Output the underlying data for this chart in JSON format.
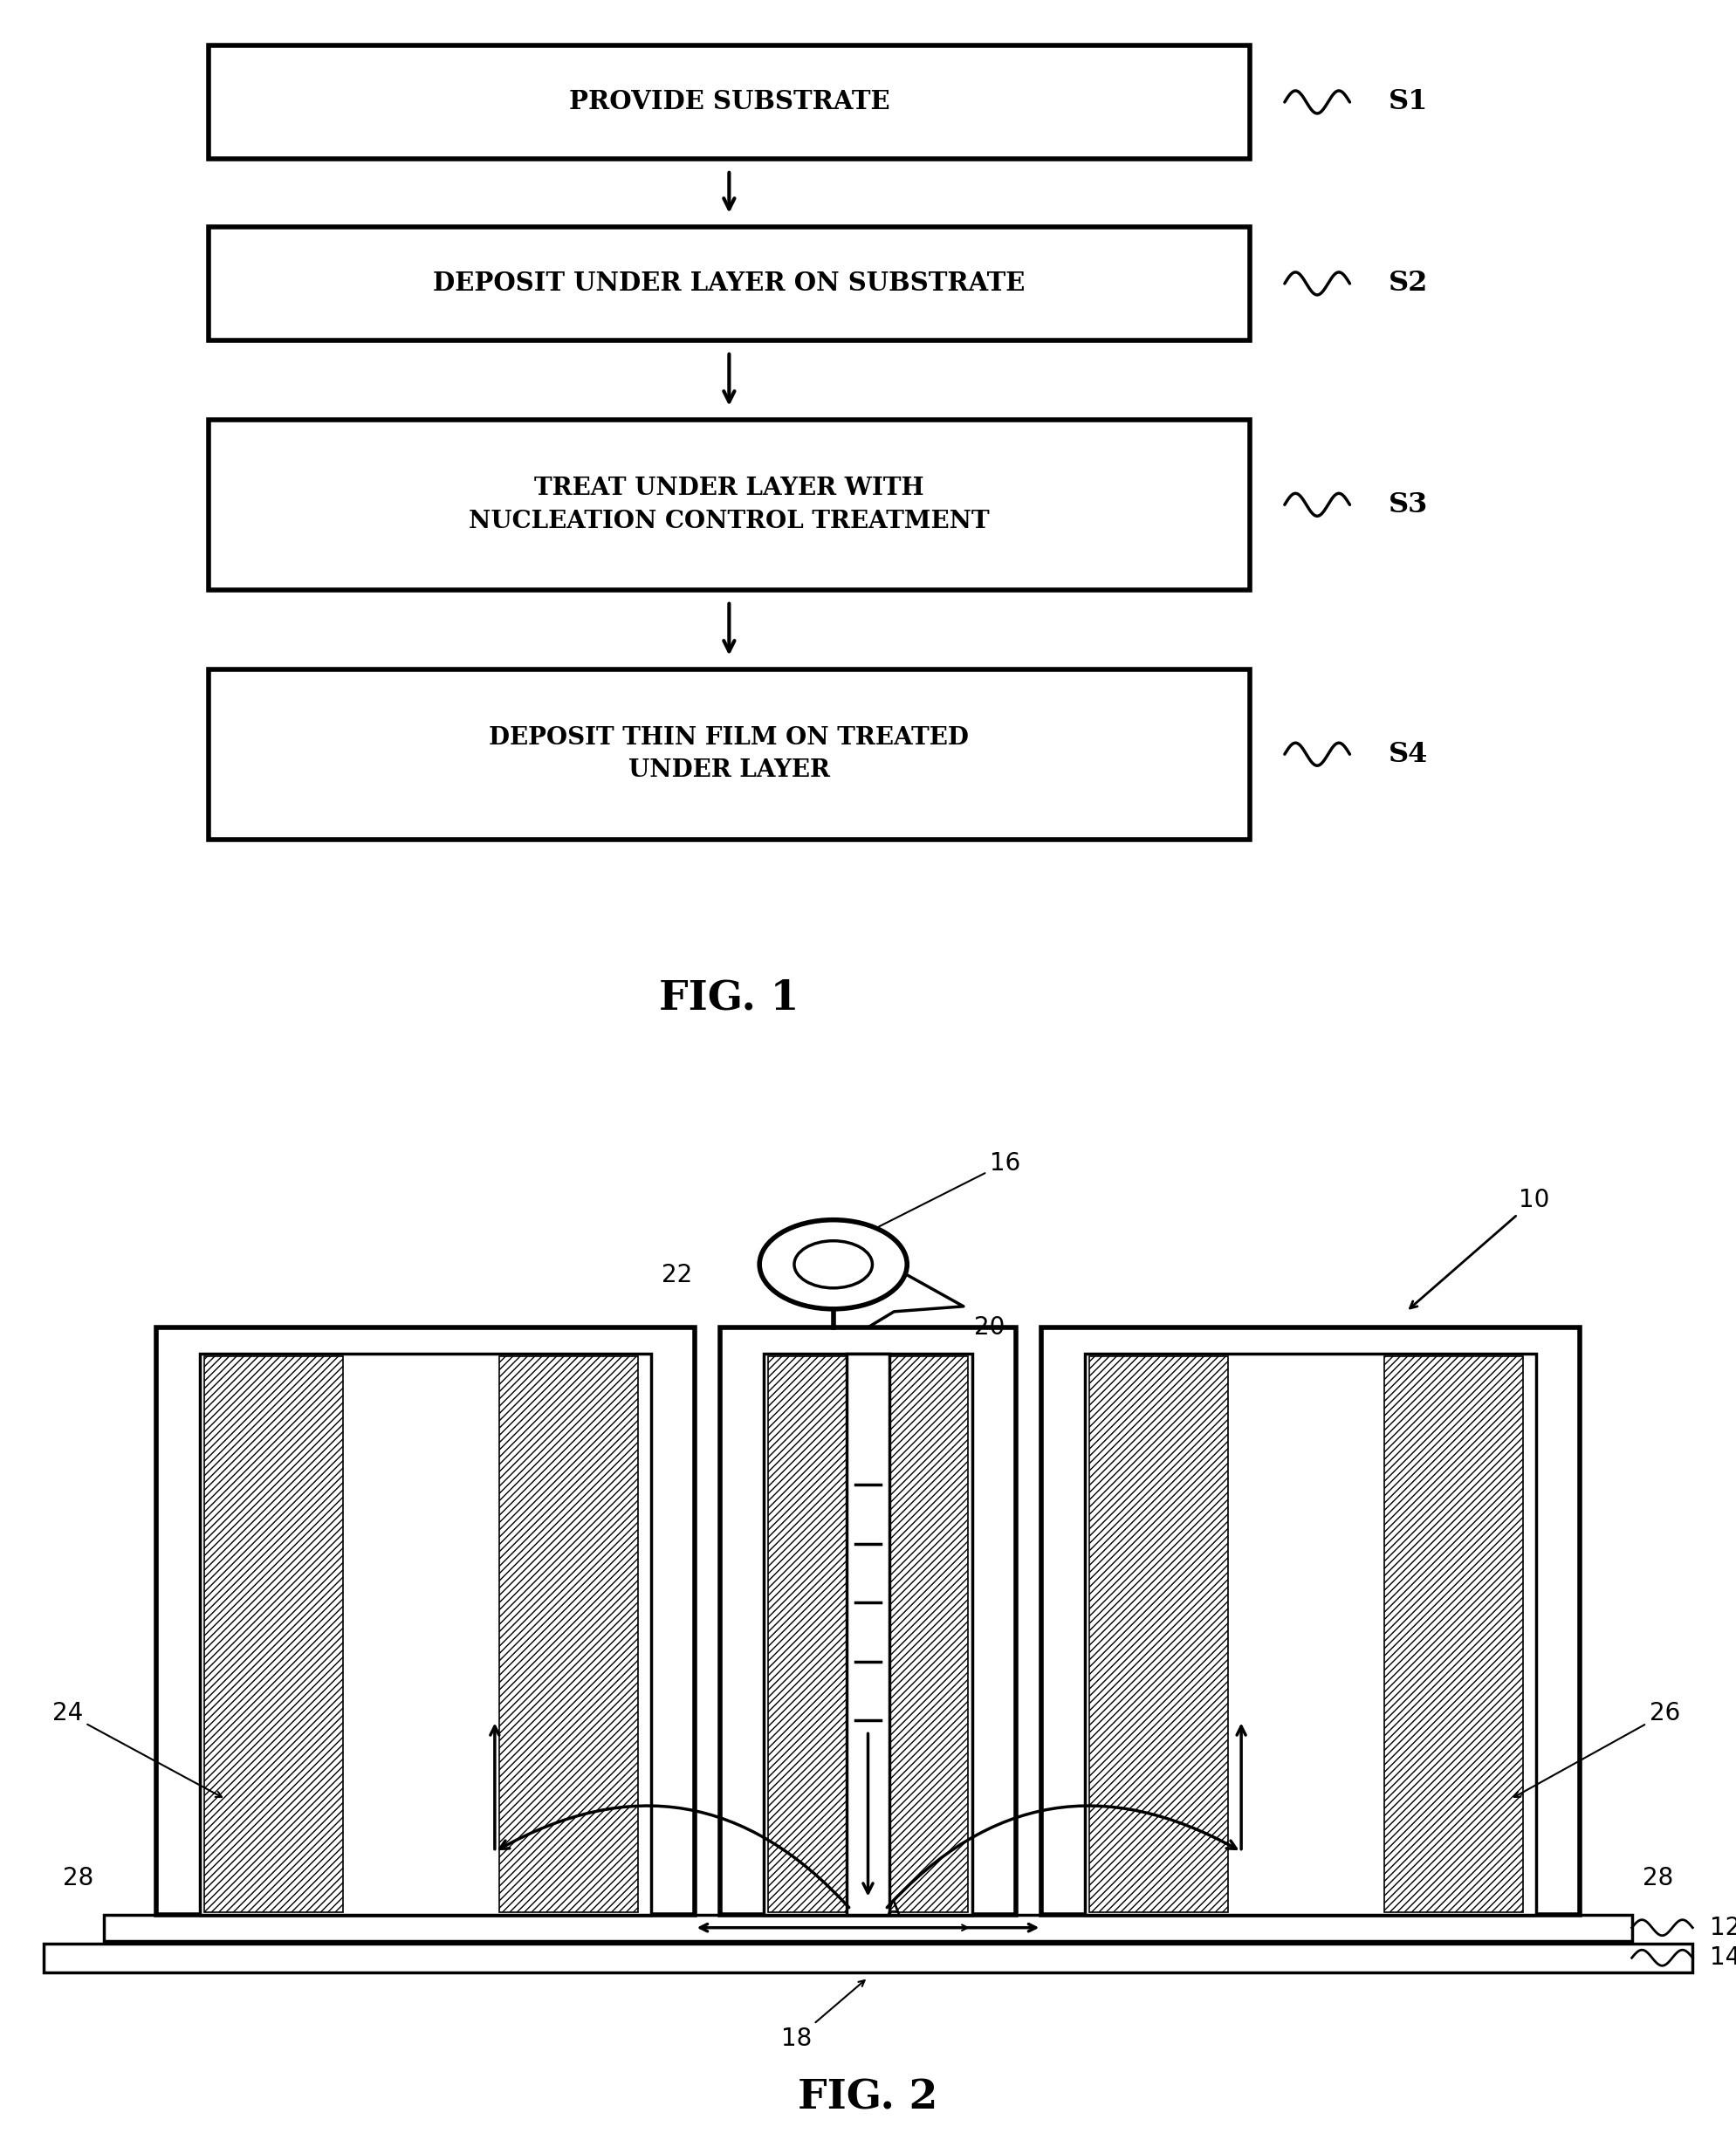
{
  "fig1": {
    "boxes": [
      {
        "text": "PROVIDE SUBSTRATE",
        "label": "S1"
      },
      {
        "text": "DEPOSIT UNDER LAYER ON SUBSTRATE",
        "label": "S2"
      },
      {
        "text": "TREAT UNDER LAYER WITH\nNUCLEATION CONTROL TREATMENT",
        "label": "S3"
      },
      {
        "text": "DEPOSIT THIN FILM ON TREATED\nUNDER LAYER",
        "label": "S4"
      }
    ],
    "fig_label": "FIG. 1"
  },
  "fig2": {
    "fig_label": "FIG. 2"
  },
  "bg_color": "#ffffff",
  "line_color": "#000000",
  "text_color": "#000000"
}
